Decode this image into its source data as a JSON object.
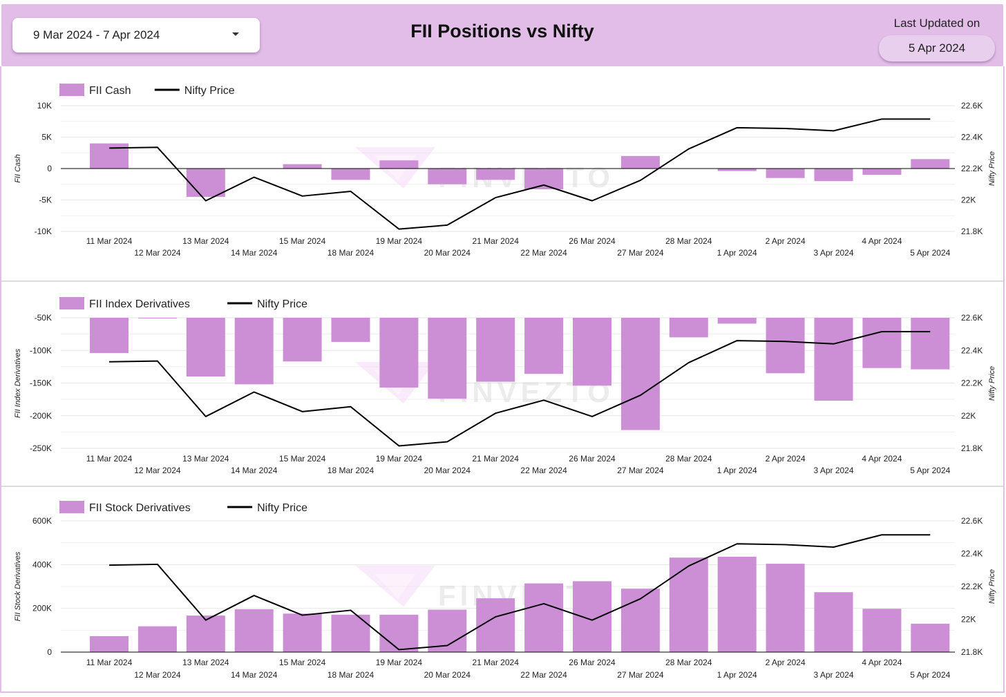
{
  "header": {
    "date_range": "9 Mar 2024 - 7 Apr 2024",
    "title": "FII Positions vs Nifty",
    "last_updated_label": "Last Updated on",
    "last_updated_value": "5 Apr 2024",
    "background_color": "#e1bde7"
  },
  "watermark": "FINVEZTO",
  "colors": {
    "bar": "#cc8fd6",
    "line": "#000000",
    "grid": "#e6e6e6"
  },
  "chart_data": [
    {
      "type": "bar",
      "categories": [
        "11 Mar 2024",
        "12 Mar 2024",
        "13 Mar 2024",
        "14 Mar 2024",
        "15 Mar 2024",
        "18 Mar 2024",
        "19 Mar 2024",
        "20 Mar 2024",
        "21 Mar 2024",
        "22 Mar 2024",
        "26 Mar 2024",
        "27 Mar 2024",
        "28 Mar 2024",
        "1 Apr 2024",
        "2 Apr 2024",
        "3 Apr 2024",
        "4 Apr 2024",
        "5 Apr 2024"
      ],
      "series": [
        {
          "name": "FII Cash",
          "type": "bar",
          "axis": "left",
          "values": [
            4000,
            0,
            -4500,
            0,
            700,
            -1800,
            1300,
            -2500,
            -1800,
            -3300,
            0,
            2000,
            0,
            -400,
            -1500,
            -2000,
            -1000,
            1500
          ]
        },
        {
          "name": "Nifty Price",
          "type": "line",
          "axis": "right",
          "values": [
            22330,
            22335,
            21995,
            22145,
            22025,
            22055,
            21815,
            21840,
            22015,
            22095,
            21995,
            22125,
            22325,
            22460,
            22455,
            22440,
            22515,
            22515
          ]
        }
      ],
      "ylabel": "FII Cash",
      "y2label": "Nifty Price",
      "ylim": [
        -10000,
        10000
      ],
      "y2lim": [
        21800,
        22600
      ],
      "yticks": [
        {
          "v": 10000,
          "label": "10K"
        },
        {
          "v": 5000,
          "label": "5K"
        },
        {
          "v": 0,
          "label": "0"
        },
        {
          "v": -5000,
          "label": "-5K"
        },
        {
          "v": -10000,
          "label": "-10K"
        }
      ],
      "y2ticks": [
        {
          "v": 22600,
          "label": "22.6K"
        },
        {
          "v": 22400,
          "label": "22.4K"
        },
        {
          "v": 22200,
          "label": "22.2K"
        },
        {
          "v": 22000,
          "label": "22K"
        },
        {
          "v": 21800,
          "label": "21.8K"
        }
      ],
      "bar_base": 0,
      "grid": true,
      "legend": "top-left"
    },
    {
      "type": "bar",
      "categories": [
        "11 Mar 2024",
        "12 Mar 2024",
        "13 Mar 2024",
        "14 Mar 2024",
        "15 Mar 2024",
        "18 Mar 2024",
        "19 Mar 2024",
        "20 Mar 2024",
        "21 Mar 2024",
        "22 Mar 2024",
        "26 Mar 2024",
        "27 Mar 2024",
        "28 Mar 2024",
        "1 Apr 2024",
        "2 Apr 2024",
        "3 Apr 2024",
        "4 Apr 2024",
        "5 Apr 2024"
      ],
      "series": [
        {
          "name": "FII Index Derivatives",
          "type": "bar",
          "axis": "left",
          "values": [
            -104000,
            -51000,
            -140000,
            -152000,
            -117000,
            -87000,
            -157000,
            -174000,
            -148000,
            -136000,
            -154000,
            -222000,
            -80000,
            -59000,
            -135000,
            -177000,
            -127000,
            -129000
          ]
        },
        {
          "name": "Nifty Price",
          "type": "line",
          "axis": "right",
          "values": [
            22330,
            22335,
            21995,
            22145,
            22025,
            22055,
            21815,
            21840,
            22015,
            22095,
            21995,
            22125,
            22325,
            22460,
            22455,
            22440,
            22515,
            22515
          ]
        }
      ],
      "ylabel": "FII Index Derivatives",
      "y2label": "Nifty Price",
      "ylim": [
        -250000,
        -50000
      ],
      "y2lim": [
        21800,
        22600
      ],
      "yticks": [
        {
          "v": -50000,
          "label": "-50K"
        },
        {
          "v": -100000,
          "label": "-100K"
        },
        {
          "v": -150000,
          "label": "-150K"
        },
        {
          "v": -200000,
          "label": "-200K"
        },
        {
          "v": -250000,
          "label": "-250K"
        }
      ],
      "y2ticks": [
        {
          "v": 22600,
          "label": "22.6K"
        },
        {
          "v": 22400,
          "label": "22.4K"
        },
        {
          "v": 22200,
          "label": "22.2K"
        },
        {
          "v": 22000,
          "label": "22K"
        },
        {
          "v": 21800,
          "label": "21.8K"
        }
      ],
      "bar_base": -50000,
      "grid": true,
      "legend": "top-left"
    },
    {
      "type": "bar",
      "categories": [
        "11 Mar 2024",
        "12 Mar 2024",
        "13 Mar 2024",
        "14 Mar 2024",
        "15 Mar 2024",
        "18 Mar 2024",
        "19 Mar 2024",
        "20 Mar 2024",
        "21 Mar 2024",
        "22 Mar 2024",
        "26 Mar 2024",
        "27 Mar 2024",
        "28 Mar 2024",
        "1 Apr 2024",
        "2 Apr 2024",
        "3 Apr 2024",
        "4 Apr 2024",
        "5 Apr 2024"
      ],
      "series": [
        {
          "name": "FII Stock Derivatives",
          "type": "bar",
          "axis": "left",
          "values": [
            73000,
            118000,
            167000,
            196000,
            176000,
            171000,
            171000,
            194000,
            246000,
            314000,
            324000,
            290000,
            432000,
            436000,
            404000,
            274000,
            198000,
            130000
          ]
        },
        {
          "name": "Nifty Price",
          "type": "line",
          "axis": "right",
          "values": [
            22330,
            22335,
            21995,
            22145,
            22025,
            22055,
            21815,
            21840,
            22015,
            22095,
            21995,
            22125,
            22325,
            22460,
            22455,
            22440,
            22515,
            22515
          ]
        }
      ],
      "ylabel": "FII Stock Derivatives",
      "y2label": "Nifty Price",
      "ylim": [
        0,
        600000
      ],
      "y2lim": [
        21800,
        22600
      ],
      "yticks": [
        {
          "v": 600000,
          "label": "600K"
        },
        {
          "v": 400000,
          "label": "400K"
        },
        {
          "v": 200000,
          "label": "200K"
        },
        {
          "v": 0,
          "label": "0"
        }
      ],
      "y2ticks": [
        {
          "v": 22600,
          "label": "22.6K"
        },
        {
          "v": 22400,
          "label": "22.4K"
        },
        {
          "v": 22200,
          "label": "22.2K"
        },
        {
          "v": 22000,
          "label": "22K"
        },
        {
          "v": 21800,
          "label": "21.8K"
        }
      ],
      "bar_base": 0,
      "grid": true,
      "legend": "top-left"
    }
  ]
}
